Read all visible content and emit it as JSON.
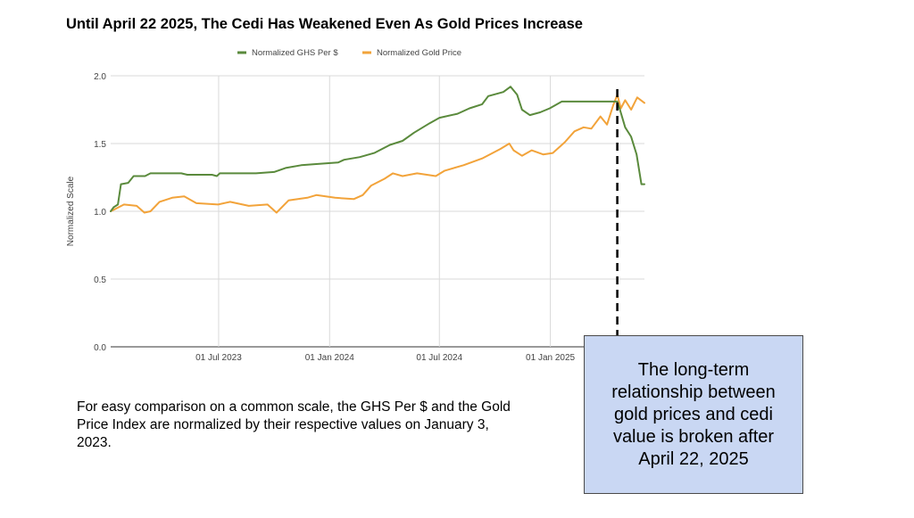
{
  "chart_data": {
    "type": "line",
    "title": "Until April 22 2025, The Cedi Has Weakened Even As Gold Prices Increase",
    "xlabel": "",
    "ylabel": "Normalized Scale",
    "ylim": [
      0,
      2.0
    ],
    "yticks": [
      "0.0",
      "0.5",
      "1.0",
      "1.5",
      "2.0"
    ],
    "xlim": [
      "2023-01-03",
      "2025-06-06"
    ],
    "xticks": [
      {
        "date": "2023-07-01",
        "label": "01 Jul 2023"
      },
      {
        "date": "2024-01-01",
        "label": "01 Jan 2024"
      },
      {
        "date": "2024-07-01",
        "label": "01 Jul 2024"
      },
      {
        "date": "2025-01-01",
        "label": "01 Jan 2025"
      }
    ],
    "grid": true,
    "legend_position": "top",
    "event_line": {
      "date": "2025-04-22",
      "style": "dashed"
    },
    "series": [
      {
        "name": "Normalized GHS Per $",
        "color": "#5a8a3c",
        "points": [
          [
            "2023-01-03",
            1.0
          ],
          [
            "2023-01-08",
            1.03
          ],
          [
            "2023-01-15",
            1.05
          ],
          [
            "2023-01-20",
            1.2
          ],
          [
            "2023-02-01",
            1.21
          ],
          [
            "2023-02-10",
            1.26
          ],
          [
            "2023-03-01",
            1.26
          ],
          [
            "2023-03-10",
            1.28
          ],
          [
            "2023-04-30",
            1.28
          ],
          [
            "2023-05-10",
            1.27
          ],
          [
            "2023-06-20",
            1.27
          ],
          [
            "2023-06-28",
            1.26
          ],
          [
            "2023-07-03",
            1.28
          ],
          [
            "2023-09-01",
            1.28
          ],
          [
            "2023-10-01",
            1.29
          ],
          [
            "2023-10-20",
            1.32
          ],
          [
            "2023-11-15",
            1.34
          ],
          [
            "2023-12-15",
            1.35
          ],
          [
            "2024-01-15",
            1.36
          ],
          [
            "2024-01-25",
            1.38
          ],
          [
            "2024-02-20",
            1.4
          ],
          [
            "2024-03-15",
            1.43
          ],
          [
            "2024-04-10",
            1.49
          ],
          [
            "2024-05-01",
            1.52
          ],
          [
            "2024-05-20",
            1.58
          ],
          [
            "2024-06-15",
            1.65
          ],
          [
            "2024-07-01",
            1.69
          ],
          [
            "2024-07-31",
            1.72
          ],
          [
            "2024-08-20",
            1.76
          ],
          [
            "2024-09-10",
            1.79
          ],
          [
            "2024-09-20",
            1.85
          ],
          [
            "2024-10-15",
            1.88
          ],
          [
            "2024-10-27",
            1.92
          ],
          [
            "2024-11-07",
            1.86
          ],
          [
            "2024-11-15",
            1.75
          ],
          [
            "2024-11-28",
            1.71
          ],
          [
            "2024-12-15",
            1.73
          ],
          [
            "2024-12-31",
            1.76
          ],
          [
            "2025-01-20",
            1.81
          ],
          [
            "2025-04-22",
            1.81
          ],
          [
            "2025-04-27",
            1.74
          ],
          [
            "2025-05-05",
            1.62
          ],
          [
            "2025-05-15",
            1.55
          ],
          [
            "2025-05-24",
            1.42
          ],
          [
            "2025-06-01",
            1.2
          ],
          [
            "2025-06-06",
            1.2
          ]
        ]
      },
      {
        "name": "Normalized Gold Price",
        "color": "#f2a33a",
        "points": [
          [
            "2023-01-03",
            1.0
          ],
          [
            "2023-01-25",
            1.05
          ],
          [
            "2023-02-15",
            1.04
          ],
          [
            "2023-02-28",
            0.99
          ],
          [
            "2023-03-10",
            1.0
          ],
          [
            "2023-03-25",
            1.07
          ],
          [
            "2023-04-15",
            1.1
          ],
          [
            "2023-05-05",
            1.11
          ],
          [
            "2023-05-25",
            1.06
          ],
          [
            "2023-06-30",
            1.05
          ],
          [
            "2023-07-20",
            1.07
          ],
          [
            "2023-08-20",
            1.04
          ],
          [
            "2023-09-20",
            1.05
          ],
          [
            "2023-10-05",
            0.99
          ],
          [
            "2023-10-25",
            1.08
          ],
          [
            "2023-11-25",
            1.1
          ],
          [
            "2023-12-10",
            1.12
          ],
          [
            "2024-01-10",
            1.1
          ],
          [
            "2024-02-10",
            1.09
          ],
          [
            "2024-02-25",
            1.12
          ],
          [
            "2024-03-10",
            1.19
          ],
          [
            "2024-04-01",
            1.24
          ],
          [
            "2024-04-15",
            1.28
          ],
          [
            "2024-05-01",
            1.26
          ],
          [
            "2024-05-25",
            1.28
          ],
          [
            "2024-06-25",
            1.26
          ],
          [
            "2024-07-10",
            1.3
          ],
          [
            "2024-08-10",
            1.34
          ],
          [
            "2024-09-10",
            1.39
          ],
          [
            "2024-10-10",
            1.46
          ],
          [
            "2024-10-25",
            1.5
          ],
          [
            "2024-11-01",
            1.45
          ],
          [
            "2024-11-15",
            1.41
          ],
          [
            "2024-12-01",
            1.45
          ],
          [
            "2024-12-20",
            1.42
          ],
          [
            "2025-01-05",
            1.43
          ],
          [
            "2025-01-25",
            1.51
          ],
          [
            "2025-02-10",
            1.59
          ],
          [
            "2025-02-25",
            1.62
          ],
          [
            "2025-03-10",
            1.61
          ],
          [
            "2025-03-25",
            1.7
          ],
          [
            "2025-04-05",
            1.64
          ],
          [
            "2025-04-15",
            1.78
          ],
          [
            "2025-04-22",
            1.86
          ],
          [
            "2025-04-28",
            1.76
          ],
          [
            "2025-05-05",
            1.82
          ],
          [
            "2025-05-15",
            1.75
          ],
          [
            "2025-05-25",
            1.84
          ],
          [
            "2025-06-06",
            1.8
          ]
        ]
      }
    ]
  },
  "note": "For easy comparison on a common scale, the GHS Per $ and the Gold Price Index are normalized by their respective values on January 3, 2023.",
  "callout": "The long-term relationship between gold prices and cedi value is broken after April 22, 2025"
}
